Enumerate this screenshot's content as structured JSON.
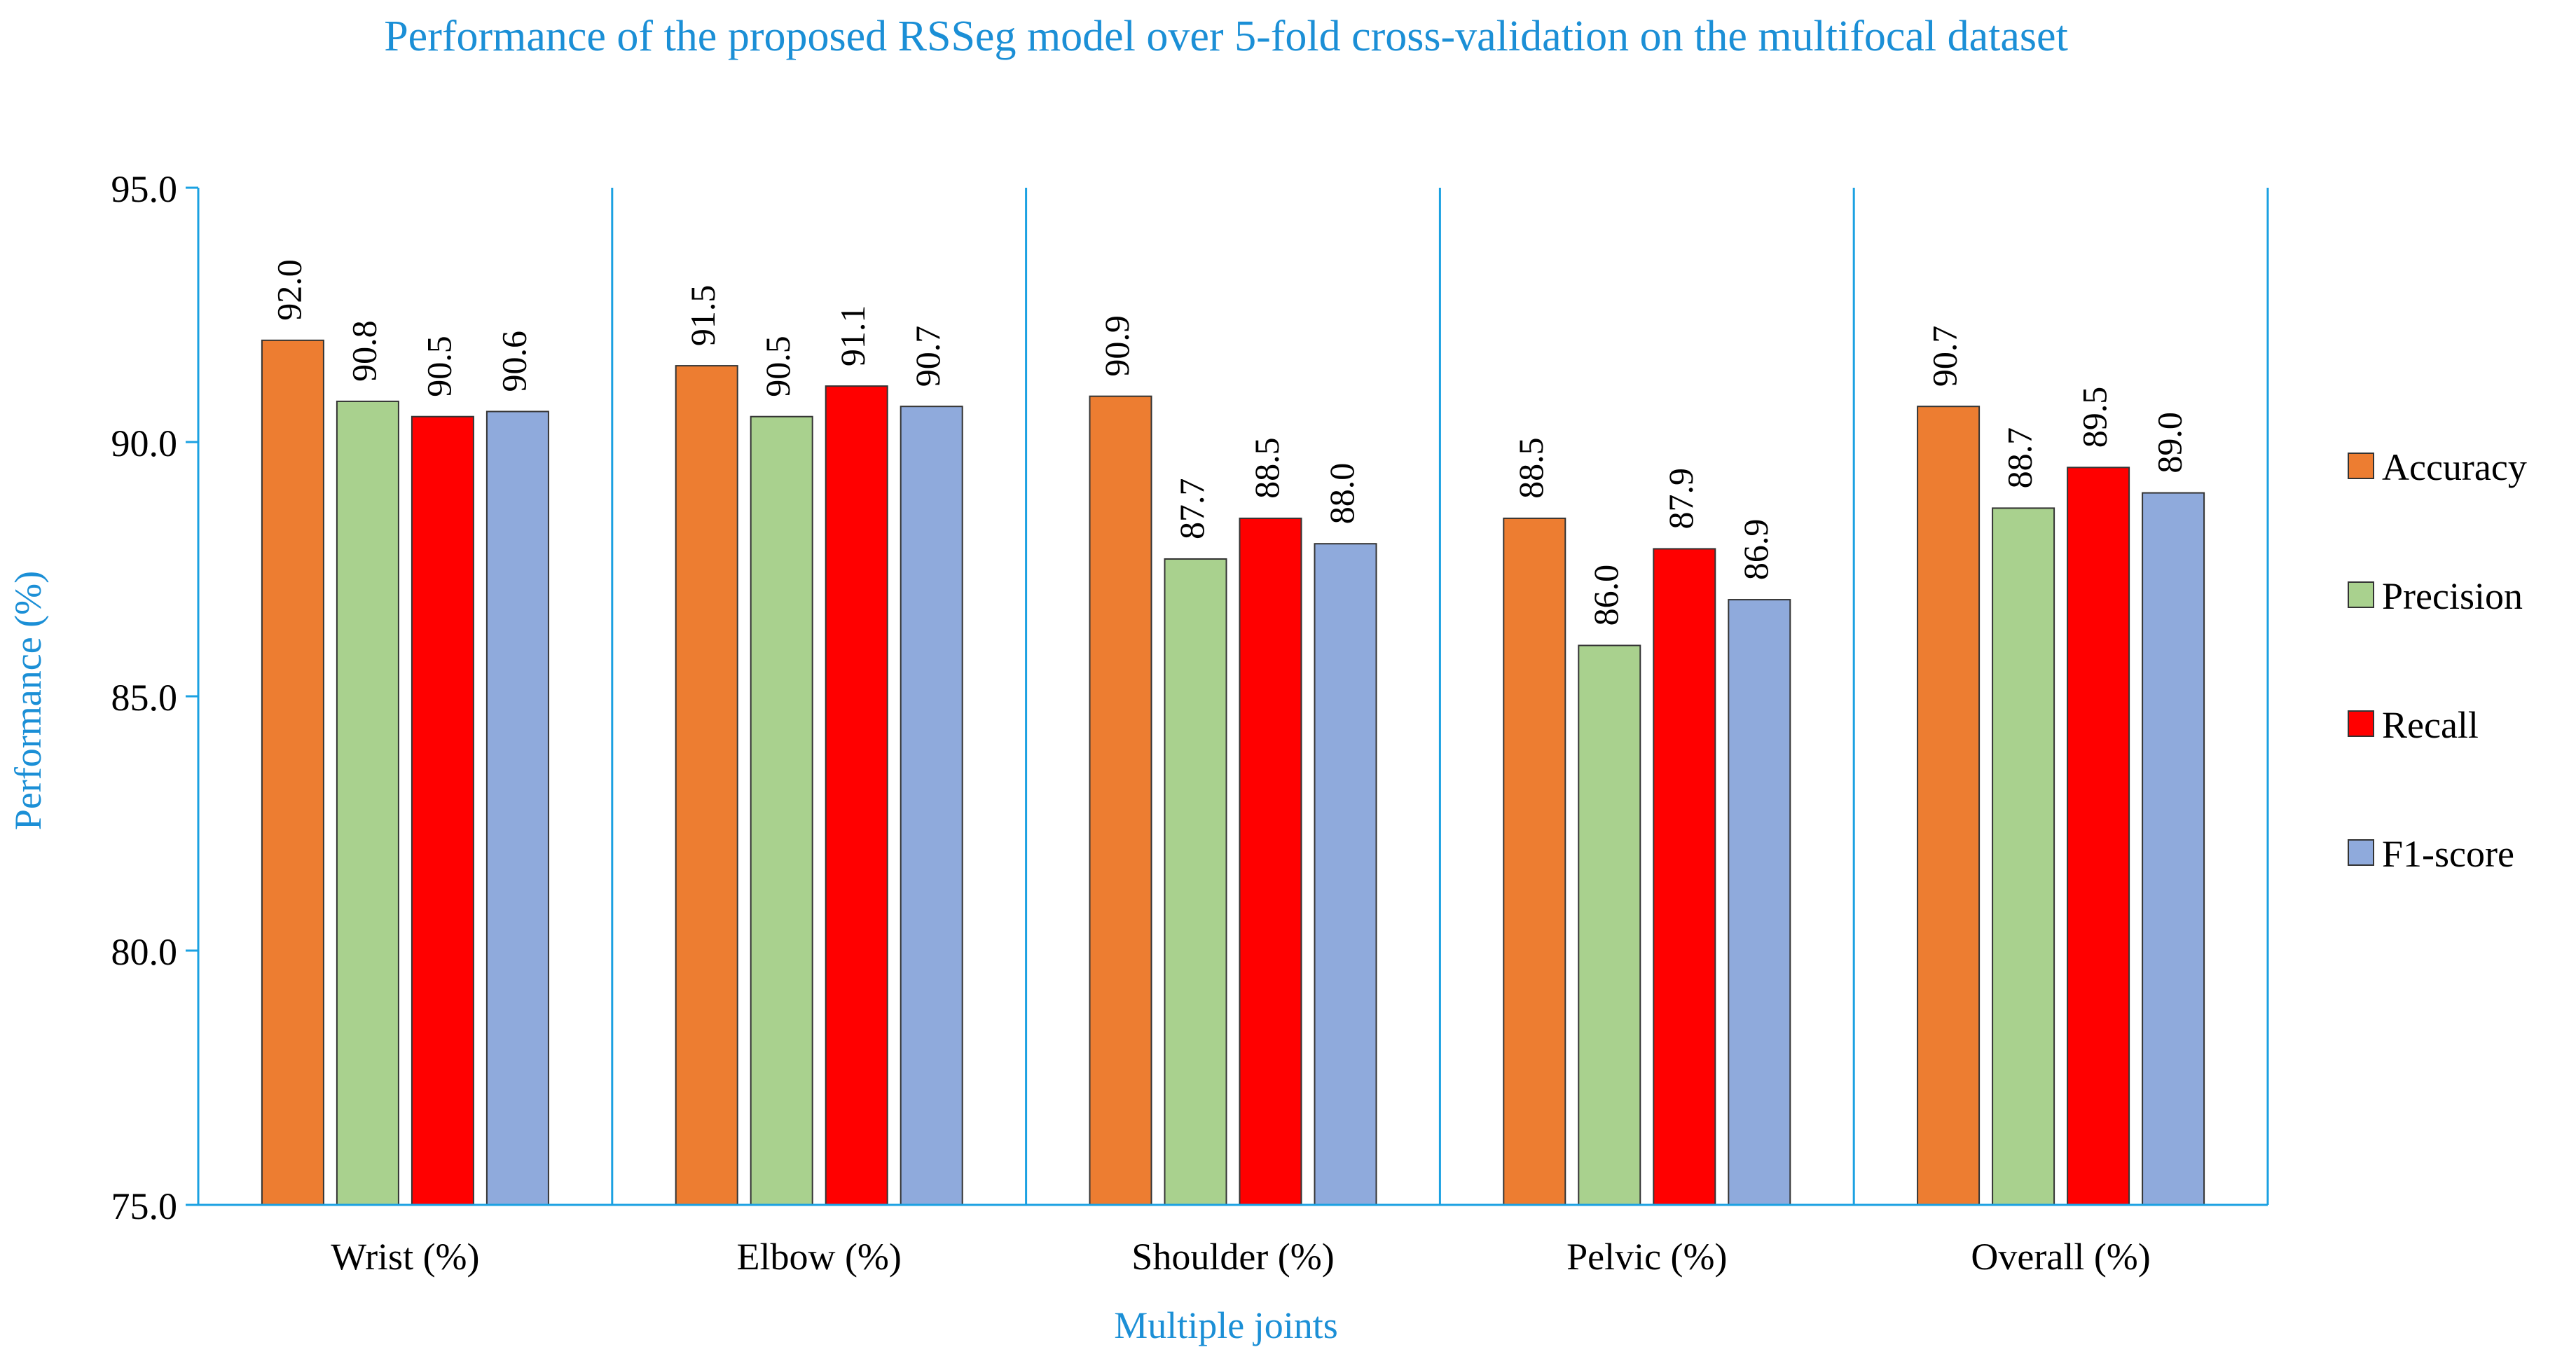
{
  "chart_data": {
    "type": "bar",
    "title": "Performance of the proposed RSSeg model over 5-fold cross-validation on the multifocal dataset",
    "xlabel": "Multiple joints",
    "ylabel": "Performance (%)",
    "ylim": [
      75.0,
      95.0
    ],
    "yticks": [
      "75.0",
      "80.0",
      "85.0",
      "90.0",
      "95.0"
    ],
    "categories": [
      "Wrist (%)",
      "Elbow (%)",
      "Shoulder (%)",
      "Pelvic (%)",
      "Overall (%)"
    ],
    "series": [
      {
        "name": "Accuracy",
        "color": "#ED7D31",
        "values": [
          92.0,
          91.5,
          90.9,
          88.5,
          90.7
        ]
      },
      {
        "name": "Precision",
        "color": "#A9D18E",
        "values": [
          90.8,
          90.5,
          87.7,
          86.0,
          88.7
        ]
      },
      {
        "name": "Recall",
        "color": "#FF0000",
        "values": [
          90.5,
          91.1,
          88.5,
          87.9,
          89.5
        ]
      },
      {
        "name": "F1-score",
        "color": "#8FAADC",
        "values": [
          90.6,
          90.7,
          88.0,
          86.9,
          89.0
        ]
      }
    ],
    "data_labels": [
      [
        "92.0",
        "90.8",
        "90.5",
        "90.6"
      ],
      [
        "91.5",
        "90.5",
        "91.1",
        "90.7"
      ],
      [
        "90.9",
        "87.7",
        "88.5",
        "88.0"
      ],
      [
        "88.5",
        "86.0",
        "87.9",
        "86.9"
      ],
      [
        "90.7",
        "88.7",
        "89.5",
        "89.0"
      ]
    ],
    "legend_position": "right",
    "grid": false,
    "axis_color": "#1BA1E2",
    "title_color": "#1B8FD6"
  }
}
